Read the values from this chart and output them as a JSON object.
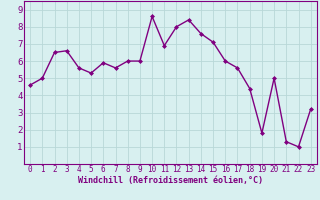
{
  "x": [
    0,
    1,
    2,
    3,
    4,
    5,
    6,
    7,
    8,
    9,
    10,
    11,
    12,
    13,
    14,
    15,
    16,
    17,
    18,
    19,
    20,
    21,
    22,
    23
  ],
  "y": [
    4.6,
    5.0,
    6.5,
    6.6,
    5.6,
    5.3,
    5.9,
    5.6,
    6.0,
    6.0,
    8.6,
    6.9,
    8.0,
    8.4,
    7.6,
    7.1,
    6.0,
    5.6,
    4.4,
    1.8,
    5.0,
    1.3,
    1.0,
    3.2
  ],
  "line_color": "#800080",
  "marker": "D",
  "marker_size": 2.0,
  "line_width": 1.0,
  "xlabel": "Windchill (Refroidissement éolien,°C)",
  "xlabel_fontsize": 6.0,
  "bg_color": "#d8f0f0",
  "grid_color": "#b8d8d8",
  "tick_color": "#800080",
  "label_color": "#800080",
  "ylim": [
    0,
    9.5
  ],
  "xlim": [
    -0.5,
    23.5
  ],
  "yticks": [
    1,
    2,
    3,
    4,
    5,
    6,
    7,
    8,
    9
  ],
  "xticks": [
    0,
    1,
    2,
    3,
    4,
    5,
    6,
    7,
    8,
    9,
    10,
    11,
    12,
    13,
    14,
    15,
    16,
    17,
    18,
    19,
    20,
    21,
    22,
    23
  ],
  "tick_fontsize": 5.5,
  "ytick_fontsize": 6.5
}
